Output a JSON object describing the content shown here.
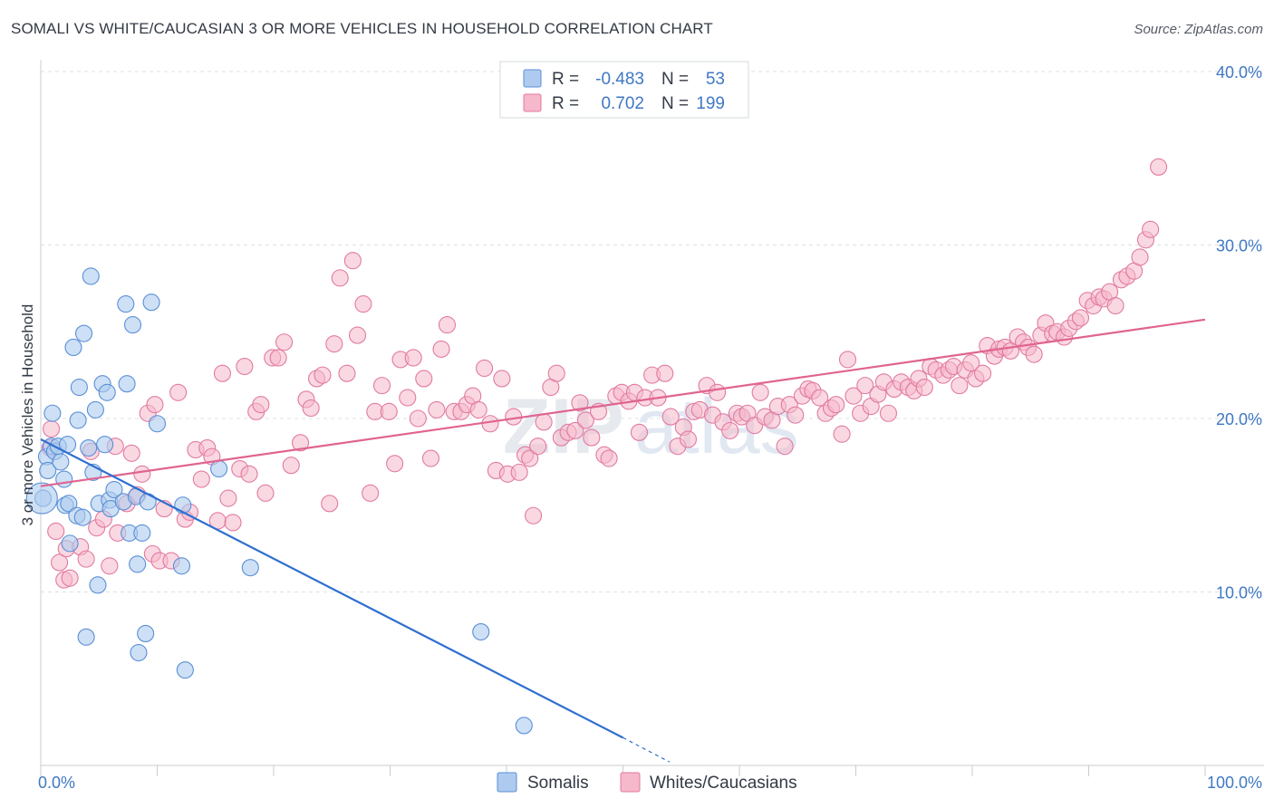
{
  "header": {
    "title": "SOMALI VS WHITE/CAUCASIAN 3 OR MORE VEHICLES IN HOUSEHOLD CORRELATION CHART",
    "source": "Source: ZipAtlas.com"
  },
  "watermark": {
    "zip": "ZIP",
    "atlas": "atlas"
  },
  "legend": {
    "rows": [
      {
        "r_label": "R =",
        "r_value": "-0.483",
        "n_label": "N =",
        "n_value": "53",
        "color": "#aecbef"
      },
      {
        "r_label": "R =",
        "r_value": "0.702",
        "n_label": "N =",
        "n_value": "199",
        "color": "#f6b8cb"
      }
    ]
  },
  "bottom_legend": [
    {
      "label": "Somalis",
      "color": "#aecbef"
    },
    {
      "label": "Whites/Caucasians",
      "color": "#f6b8cb"
    }
  ],
  "chart_data": {
    "type": "scatter",
    "title": "SOMALI VS WHITE/CAUCASIAN 3 OR MORE VEHICLES IN HOUSEHOLD CORRELATION CHART",
    "xlabel": "",
    "ylabel": "3 or more Vehicles in Household",
    "xlim": [
      0,
      100
    ],
    "ylim": [
      0,
      40
    ],
    "x_ticks": [
      "0.0%",
      "100.0%"
    ],
    "y_ticks": [
      "10.0%",
      "20.0%",
      "30.0%",
      "40.0%"
    ],
    "y_tick_values": [
      10,
      20,
      30,
      40
    ],
    "grid": true,
    "colors": {
      "somali_fill": "#aecbef",
      "somali_stroke": "#5a8fd6",
      "somali_line": "#2f6fd0",
      "white_fill": "#f6b8cb",
      "white_stroke": "#e17aa0",
      "white_line": "#e0648f"
    },
    "series": [
      {
        "name": "Somalis",
        "trend": {
          "x": [
            0,
            50,
            54
          ],
          "y": [
            18.8,
            1.6,
            0.2
          ]
        },
        "points": [
          [
            0.2,
            15.4
          ],
          [
            0.5,
            17.8
          ],
          [
            0.6,
            17.0
          ],
          [
            0.9,
            18.4
          ],
          [
            1.0,
            20.3
          ],
          [
            1.2,
            18.1
          ],
          [
            1.5,
            18.4
          ],
          [
            1.7,
            17.5
          ],
          [
            2.0,
            16.5
          ],
          [
            2.1,
            15.0
          ],
          [
            2.3,
            18.5
          ],
          [
            2.4,
            15.1
          ],
          [
            2.5,
            12.8
          ],
          [
            2.8,
            24.1
          ],
          [
            3.1,
            14.4
          ],
          [
            3.2,
            19.9
          ],
          [
            3.3,
            21.8
          ],
          [
            3.6,
            14.3
          ],
          [
            3.7,
            24.9
          ],
          [
            3.9,
            7.4
          ],
          [
            4.1,
            18.3
          ],
          [
            4.3,
            28.2
          ],
          [
            4.5,
            16.9
          ],
          [
            4.7,
            20.5
          ],
          [
            4.9,
            10.4
          ],
          [
            5.0,
            15.1
          ],
          [
            5.3,
            22.0
          ],
          [
            5.5,
            18.5
          ],
          [
            5.7,
            21.5
          ],
          [
            5.9,
            15.3
          ],
          [
            6.0,
            14.8
          ],
          [
            6.3,
            15.9
          ],
          [
            7.1,
            15.2
          ],
          [
            7.3,
            26.6
          ],
          [
            7.4,
            22.0
          ],
          [
            7.6,
            13.4
          ],
          [
            7.9,
            25.4
          ],
          [
            8.2,
            15.5
          ],
          [
            8.3,
            11.6
          ],
          [
            8.4,
            6.5
          ],
          [
            8.7,
            13.4
          ],
          [
            9.0,
            7.6
          ],
          [
            9.2,
            15.2
          ],
          [
            9.5,
            26.7
          ],
          [
            10.0,
            19.7
          ],
          [
            12.1,
            11.5
          ],
          [
            12.2,
            15.0
          ],
          [
            12.4,
            5.5
          ],
          [
            15.3,
            17.1
          ],
          [
            18.0,
            11.4
          ],
          [
            37.8,
            7.7
          ],
          [
            41.5,
            2.3
          ],
          [
            0.1,
            15.4
          ]
        ]
      },
      {
        "name": "Whites/Caucasians",
        "trend": {
          "x": [
            0,
            100
          ],
          "y": [
            16.1,
            25.7
          ]
        },
        "points": [
          [
            0.8,
            18.3
          ],
          [
            0.9,
            19.4
          ],
          [
            1.3,
            13.5
          ],
          [
            1.6,
            11.7
          ],
          [
            2.0,
            10.7
          ],
          [
            2.2,
            12.5
          ],
          [
            2.5,
            10.8
          ],
          [
            3.4,
            12.6
          ],
          [
            3.9,
            11.9
          ],
          [
            4.3,
            18.1
          ],
          [
            4.8,
            13.7
          ],
          [
            5.4,
            14.2
          ],
          [
            5.9,
            11.5
          ],
          [
            6.4,
            18.4
          ],
          [
            6.6,
            13.4
          ],
          [
            7.4,
            15.1
          ],
          [
            7.8,
            18.0
          ],
          [
            8.3,
            15.6
          ],
          [
            8.7,
            16.8
          ],
          [
            9.2,
            20.3
          ],
          [
            9.6,
            12.2
          ],
          [
            9.8,
            20.8
          ],
          [
            10.2,
            11.8
          ],
          [
            10.6,
            14.8
          ],
          [
            11.2,
            11.8
          ],
          [
            11.8,
            21.5
          ],
          [
            12.4,
            14.2
          ],
          [
            12.8,
            14.6
          ],
          [
            13.3,
            18.2
          ],
          [
            13.8,
            16.5
          ],
          [
            14.3,
            18.3
          ],
          [
            14.7,
            17.8
          ],
          [
            15.2,
            14.1
          ],
          [
            15.6,
            22.6
          ],
          [
            16.1,
            15.4
          ],
          [
            16.5,
            14.0
          ],
          [
            17.1,
            17.1
          ],
          [
            17.5,
            23.0
          ],
          [
            17.9,
            16.8
          ],
          [
            18.5,
            20.4
          ],
          [
            18.9,
            20.8
          ],
          [
            19.3,
            15.7
          ],
          [
            19.9,
            23.5
          ],
          [
            20.4,
            23.5
          ],
          [
            20.9,
            24.4
          ],
          [
            21.5,
            17.3
          ],
          [
            22.3,
            18.6
          ],
          [
            22.8,
            21.1
          ],
          [
            23.2,
            20.6
          ],
          [
            23.7,
            22.3
          ],
          [
            24.2,
            22.5
          ],
          [
            24.8,
            15.1
          ],
          [
            25.2,
            24.3
          ],
          [
            25.7,
            28.1
          ],
          [
            26.3,
            22.6
          ],
          [
            26.8,
            29.1
          ],
          [
            27.2,
            24.8
          ],
          [
            27.7,
            26.6
          ],
          [
            28.3,
            15.7
          ],
          [
            28.7,
            20.4
          ],
          [
            29.3,
            21.9
          ],
          [
            29.9,
            20.4
          ],
          [
            30.4,
            17.4
          ],
          [
            30.9,
            23.4
          ],
          [
            31.5,
            21.2
          ],
          [
            32.0,
            23.5
          ],
          [
            32.4,
            20.0
          ],
          [
            32.9,
            22.3
          ],
          [
            33.5,
            17.7
          ],
          [
            34.0,
            20.5
          ],
          [
            34.4,
            24.0
          ],
          [
            34.9,
            25.4
          ],
          [
            35.5,
            20.4
          ],
          [
            36.1,
            20.4
          ],
          [
            36.6,
            20.8
          ],
          [
            37.1,
            21.3
          ],
          [
            37.6,
            20.5
          ],
          [
            38.1,
            22.9
          ],
          [
            38.6,
            19.7
          ],
          [
            39.1,
            17.0
          ],
          [
            39.6,
            22.3
          ],
          [
            40.1,
            16.8
          ],
          [
            40.6,
            20.1
          ],
          [
            41.1,
            16.9
          ],
          [
            41.6,
            17.9
          ],
          [
            42.0,
            17.7
          ],
          [
            42.3,
            14.4
          ],
          [
            42.7,
            18.4
          ],
          [
            43.2,
            19.8
          ],
          [
            43.8,
            21.8
          ],
          [
            44.3,
            22.6
          ],
          [
            44.7,
            18.9
          ],
          [
            45.3,
            19.2
          ],
          [
            45.9,
            19.3
          ],
          [
            46.3,
            20.9
          ],
          [
            46.8,
            19.9
          ],
          [
            47.3,
            18.9
          ],
          [
            47.9,
            20.4
          ],
          [
            48.4,
            17.9
          ],
          [
            48.8,
            17.7
          ],
          [
            49.4,
            21.3
          ],
          [
            49.9,
            21.5
          ],
          [
            50.5,
            21.0
          ],
          [
            51.0,
            21.5
          ],
          [
            51.4,
            19.2
          ],
          [
            51.9,
            21.2
          ],
          [
            52.5,
            22.5
          ],
          [
            53.0,
            21.2
          ],
          [
            53.6,
            22.6
          ],
          [
            54.1,
            20.1
          ],
          [
            54.7,
            18.4
          ],
          [
            55.2,
            19.5
          ],
          [
            55.6,
            18.8
          ],
          [
            56.1,
            20.4
          ],
          [
            56.6,
            20.5
          ],
          [
            57.2,
            21.9
          ],
          [
            57.7,
            20.2
          ],
          [
            58.1,
            21.5
          ],
          [
            58.6,
            19.8
          ],
          [
            59.2,
            19.3
          ],
          [
            59.8,
            20.3
          ],
          [
            60.2,
            20.1
          ],
          [
            60.7,
            20.3
          ],
          [
            61.3,
            19.6
          ],
          [
            61.8,
            21.5
          ],
          [
            62.2,
            20.1
          ],
          [
            62.8,
            19.9
          ],
          [
            63.3,
            20.7
          ],
          [
            63.9,
            18.4
          ],
          [
            64.3,
            20.8
          ],
          [
            64.8,
            20.2
          ],
          [
            65.4,
            21.3
          ],
          [
            65.9,
            21.7
          ],
          [
            66.3,
            21.6
          ],
          [
            66.9,
            21.2
          ],
          [
            67.4,
            20.3
          ],
          [
            67.9,
            20.6
          ],
          [
            68.3,
            20.8
          ],
          [
            68.8,
            19.1
          ],
          [
            69.3,
            23.4
          ],
          [
            69.8,
            21.3
          ],
          [
            70.4,
            20.3
          ],
          [
            70.8,
            21.9
          ],
          [
            71.3,
            20.7
          ],
          [
            71.9,
            21.4
          ],
          [
            72.4,
            22.1
          ],
          [
            72.8,
            20.3
          ],
          [
            73.3,
            21.7
          ],
          [
            73.9,
            22.1
          ],
          [
            74.5,
            21.8
          ],
          [
            75.0,
            21.6
          ],
          [
            75.4,
            22.3
          ],
          [
            75.9,
            21.8
          ],
          [
            76.4,
            23.0
          ],
          [
            76.9,
            22.8
          ],
          [
            77.5,
            22.5
          ],
          [
            78.0,
            22.8
          ],
          [
            78.4,
            23.0
          ],
          [
            78.9,
            21.9
          ],
          [
            79.4,
            22.8
          ],
          [
            79.9,
            23.2
          ],
          [
            80.3,
            22.3
          ],
          [
            80.9,
            22.6
          ],
          [
            81.3,
            24.2
          ],
          [
            81.9,
            23.6
          ],
          [
            82.3,
            24.0
          ],
          [
            82.8,
            24.1
          ],
          [
            83.3,
            23.9
          ],
          [
            83.9,
            24.7
          ],
          [
            84.4,
            24.4
          ],
          [
            84.8,
            24.1
          ],
          [
            85.3,
            23.7
          ],
          [
            85.9,
            24.8
          ],
          [
            86.3,
            25.5
          ],
          [
            86.9,
            24.9
          ],
          [
            87.3,
            25.0
          ],
          [
            87.9,
            24.7
          ],
          [
            88.3,
            25.2
          ],
          [
            88.9,
            25.6
          ],
          [
            89.3,
            25.8
          ],
          [
            89.9,
            26.8
          ],
          [
            90.4,
            26.5
          ],
          [
            90.9,
            27.0
          ],
          [
            91.3,
            26.9
          ],
          [
            91.8,
            27.3
          ],
          [
            92.3,
            26.5
          ],
          [
            92.8,
            28.0
          ],
          [
            93.3,
            28.2
          ],
          [
            93.9,
            28.5
          ],
          [
            94.4,
            29.3
          ],
          [
            94.9,
            30.3
          ],
          [
            95.3,
            30.9
          ],
          [
            96.0,
            34.5
          ]
        ]
      }
    ]
  }
}
